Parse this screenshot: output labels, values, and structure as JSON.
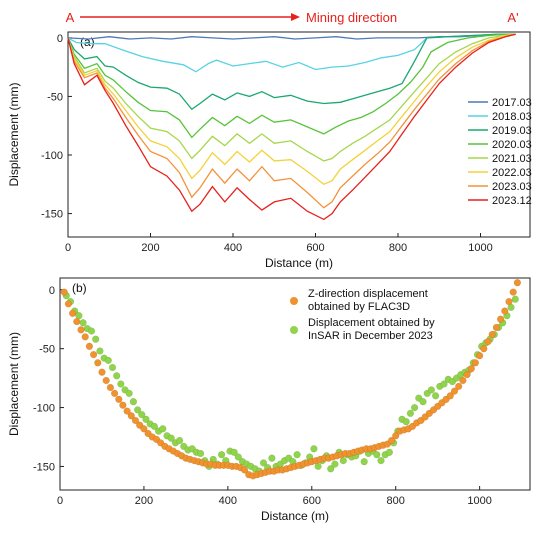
{
  "chart_data": [
    {
      "type": "line",
      "panel_label": "(a)",
      "xlabel": "Distance (m)",
      "ylabel": "Displacement (mm)",
      "xlim": [
        0,
        1120
      ],
      "ylim": [
        -170,
        5
      ],
      "xticks": [
        0,
        200,
        400,
        600,
        800,
        1000
      ],
      "yticks": [
        0,
        -50,
        -100,
        -150
      ],
      "grid": false,
      "legend_position": "right",
      "annotations": {
        "start_label": "A",
        "end_label": "A'",
        "arrow_label": "Mining direction",
        "arrow_color": "#e8201c"
      },
      "series": [
        {
          "name": "2017.03",
          "color": "#4f79b8",
          "x": [
            0,
            50,
            100,
            150,
            200,
            250,
            300,
            350,
            400,
            450,
            500,
            550,
            600,
            650,
            700,
            750,
            800,
            850,
            900,
            950,
            1000,
            1050,
            1085
          ],
          "y": [
            0,
            -1,
            1,
            -1,
            0,
            -1,
            1,
            0,
            -1,
            0,
            1,
            -1,
            0,
            1,
            -1,
            0,
            0,
            0,
            1,
            1,
            2,
            3,
            3
          ]
        },
        {
          "name": "2018.03",
          "color": "#57d3e3",
          "x": [
            0,
            20,
            60,
            90,
            130,
            180,
            230,
            280,
            310,
            340,
            360,
            400,
            440,
            480,
            520,
            560,
            600,
            640,
            680,
            720,
            760,
            800,
            840,
            870,
            920,
            980,
            1040,
            1085
          ],
          "y": [
            0,
            -4,
            -5,
            -5,
            -10,
            -16,
            -20,
            -23,
            -29,
            -22,
            -19,
            -24,
            -22,
            -20,
            -25,
            -21,
            -27,
            -25,
            -24,
            -21,
            -17,
            -15,
            -10,
            0,
            1,
            2,
            3,
            3
          ]
        },
        {
          "name": "2019.03",
          "color": "#1aa870",
          "x": [
            0,
            15,
            40,
            70,
            90,
            110,
            140,
            170,
            200,
            240,
            270,
            300,
            320,
            350,
            380,
            410,
            440,
            470,
            500,
            540,
            580,
            620,
            660,
            700,
            740,
            780,
            810,
            840,
            870,
            920,
            980,
            1040,
            1085
          ],
          "y": [
            0,
            -10,
            -18,
            -16,
            -24,
            -25,
            -32,
            -38,
            -42,
            -43,
            -48,
            -61,
            -56,
            -48,
            -53,
            -47,
            -50,
            -46,
            -51,
            -49,
            -54,
            -56,
            -55,
            -51,
            -47,
            -43,
            -39,
            -20,
            0,
            1,
            2,
            3,
            3
          ]
        },
        {
          "name": "2020.03",
          "color": "#58c33a",
          "x": [
            0,
            15,
            40,
            70,
            90,
            110,
            140,
            170,
            200,
            240,
            270,
            300,
            320,
            350,
            380,
            410,
            440,
            470,
            500,
            540,
            580,
            620,
            650,
            680,
            710,
            740,
            770,
            800,
            830,
            860,
            880,
            920,
            970,
            1020,
            1060,
            1085
          ],
          "y": [
            0,
            -14,
            -26,
            -22,
            -32,
            -36,
            -46,
            -55,
            -62,
            -63,
            -70,
            -85,
            -78,
            -68,
            -75,
            -67,
            -73,
            -66,
            -72,
            -70,
            -76,
            -82,
            -76,
            -71,
            -68,
            -63,
            -56,
            -48,
            -38,
            -25,
            -12,
            -4,
            0,
            2,
            3,
            3
          ]
        },
        {
          "name": "2021.03",
          "color": "#a7d64b",
          "x": [
            0,
            15,
            40,
            70,
            90,
            110,
            140,
            170,
            200,
            240,
            270,
            300,
            320,
            350,
            380,
            410,
            440,
            470,
            500,
            540,
            580,
            620,
            640,
            660,
            690,
            720,
            750,
            780,
            810,
            840,
            870,
            900,
            940,
            980,
            1020,
            1060,
            1085
          ],
          "y": [
            0,
            -16,
            -30,
            -26,
            -37,
            -43,
            -56,
            -67,
            -77,
            -80,
            -88,
            -103,
            -96,
            -84,
            -92,
            -82,
            -90,
            -82,
            -90,
            -88,
            -97,
            -105,
            -103,
            -97,
            -90,
            -84,
            -77,
            -70,
            -58,
            -46,
            -34,
            -22,
            -12,
            -5,
            0,
            2,
            3
          ]
        },
        {
          "name": "2022.03",
          "color": "#f3d23b",
          "x": [
            0,
            15,
            40,
            70,
            90,
            110,
            140,
            170,
            200,
            240,
            270,
            300,
            320,
            350,
            380,
            410,
            440,
            470,
            500,
            540,
            580,
            620,
            640,
            660,
            690,
            720,
            750,
            780,
            810,
            840,
            870,
            900,
            940,
            980,
            1020,
            1060,
            1085
          ],
          "y": [
            0,
            -18,
            -32,
            -28,
            -40,
            -48,
            -62,
            -76,
            -88,
            -93,
            -103,
            -120,
            -113,
            -98,
            -108,
            -97,
            -106,
            -96,
            -105,
            -104,
            -114,
            -125,
            -122,
            -112,
            -104,
            -96,
            -88,
            -80,
            -67,
            -54,
            -41,
            -29,
            -17,
            -8,
            -2,
            2,
            3
          ]
        },
        {
          "name": "2023.03",
          "color": "#f4923b",
          "x": [
            0,
            15,
            40,
            70,
            90,
            110,
            140,
            170,
            200,
            240,
            270,
            300,
            320,
            350,
            380,
            410,
            440,
            470,
            500,
            540,
            580,
            620,
            640,
            660,
            690,
            720,
            750,
            780,
            810,
            840,
            870,
            900,
            940,
            980,
            1020,
            1060,
            1085
          ],
          "y": [
            0,
            -20,
            -34,
            -30,
            -43,
            -52,
            -68,
            -83,
            -97,
            -103,
            -115,
            -136,
            -128,
            -112,
            -124,
            -112,
            -122,
            -110,
            -122,
            -120,
            -132,
            -145,
            -140,
            -128,
            -118,
            -108,
            -99,
            -89,
            -75,
            -61,
            -48,
            -35,
            -22,
            -11,
            -3,
            1,
            3
          ]
        },
        {
          "name": "2023.12",
          "color": "#e8201c",
          "x": [
            0,
            15,
            40,
            70,
            90,
            110,
            140,
            170,
            200,
            240,
            270,
            300,
            320,
            350,
            380,
            410,
            440,
            470,
            500,
            540,
            580,
            620,
            640,
            660,
            690,
            720,
            750,
            780,
            810,
            840,
            870,
            900,
            940,
            980,
            1020,
            1060,
            1085
          ],
          "y": [
            0,
            -22,
            -40,
            -32,
            -45,
            -56,
            -75,
            -92,
            -110,
            -118,
            -130,
            -148,
            -142,
            -127,
            -140,
            -128,
            -138,
            -147,
            -140,
            -137,
            -148,
            -155,
            -150,
            -140,
            -130,
            -119,
            -108,
            -97,
            -82,
            -67,
            -53,
            -39,
            -25,
            -13,
            -4,
            1,
            3
          ]
        }
      ]
    },
    {
      "type": "scatter",
      "panel_label": "(b)",
      "xlabel": "Distance (m)",
      "ylabel": "Displacement (mm)",
      "xlim": [
        0,
        1120
      ],
      "ylim": [
        -170,
        10
      ],
      "xticks": [
        0,
        200,
        400,
        600,
        800,
        1000
      ],
      "yticks": [
        0,
        -50,
        -100,
        -150
      ],
      "grid": false,
      "legend_position": "top-right",
      "series": [
        {
          "name": "Z-direction displacement obtained by FLAC3D",
          "color": "#f0922e",
          "x": [
            10,
            20,
            30,
            40,
            50,
            60,
            70,
            80,
            90,
            100,
            110,
            120,
            130,
            140,
            150,
            160,
            170,
            180,
            190,
            200,
            210,
            220,
            230,
            240,
            250,
            260,
            270,
            280,
            290,
            300,
            310,
            320,
            330,
            340,
            350,
            360,
            370,
            380,
            390,
            400,
            410,
            420,
            430,
            440,
            450,
            460,
            470,
            480,
            490,
            500,
            510,
            520,
            530,
            540,
            550,
            560,
            570,
            580,
            590,
            600,
            610,
            620,
            630,
            640,
            650,
            660,
            670,
            680,
            690,
            700,
            710,
            720,
            730,
            740,
            750,
            760,
            770,
            780,
            790,
            800,
            810,
            820,
            830,
            840,
            850,
            860,
            870,
            880,
            890,
            900,
            910,
            920,
            930,
            940,
            950,
            960,
            970,
            980,
            990,
            1000,
            1010,
            1020,
            1030,
            1040,
            1050,
            1060,
            1070,
            1080,
            1090
          ],
          "y": [
            -2,
            -12,
            -20,
            -27,
            -34,
            -40,
            -48,
            -55,
            -62,
            -70,
            -77,
            -83,
            -88,
            -93,
            -98,
            -103,
            -107,
            -111,
            -115,
            -118,
            -122,
            -125,
            -127,
            -130,
            -133,
            -135,
            -137,
            -139,
            -141,
            -143,
            -144,
            -145,
            -146,
            -147,
            -148,
            -148,
            -149,
            -149,
            -149,
            -149,
            -150,
            -150,
            -151,
            -153,
            -157,
            -158,
            -157,
            -156,
            -155,
            -154,
            -154,
            -153,
            -153,
            -152,
            -151,
            -150,
            -149,
            -148,
            -147,
            -146,
            -145,
            -144,
            -143,
            -143,
            -142,
            -141,
            -140,
            -139,
            -139,
            -138,
            -137,
            -136,
            -135,
            -135,
            -134,
            -133,
            -132,
            -131,
            -128,
            -124,
            -120,
            -119,
            -118,
            -116,
            -113,
            -111,
            -108,
            -105,
            -102,
            -99,
            -96,
            -93,
            -90,
            -86,
            -82,
            -77,
            -72,
            -67,
            -62,
            -56,
            -50,
            -44,
            -38,
            -32,
            -25,
            -18,
            -10,
            -2,
            6
          ]
        },
        {
          "name": "Displacement obtained by InSAR in December 2023",
          "color": "#8fd44b",
          "x": [
            15,
            25,
            35,
            45,
            55,
            65,
            75,
            85,
            95,
            105,
            115,
            125,
            135,
            145,
            155,
            165,
            175,
            185,
            195,
            205,
            215,
            225,
            235,
            245,
            255,
            265,
            275,
            285,
            295,
            305,
            315,
            325,
            335,
            345,
            355,
            365,
            375,
            385,
            395,
            405,
            415,
            425,
            435,
            445,
            455,
            465,
            475,
            485,
            495,
            505,
            515,
            525,
            535,
            545,
            555,
            565,
            575,
            585,
            595,
            605,
            615,
            625,
            635,
            645,
            655,
            665,
            675,
            685,
            695,
            705,
            715,
            725,
            735,
            745,
            755,
            765,
            775,
            785,
            795,
            805,
            815,
            825,
            835,
            845,
            855,
            865,
            875,
            885,
            895,
            905,
            915,
            925,
            935,
            945,
            955,
            965,
            975,
            985,
            995,
            1005,
            1015,
            1025,
            1035,
            1045,
            1055,
            1065,
            1075,
            1085
          ],
          "y": [
            -5,
            -10,
            -18,
            -22,
            -28,
            -33,
            -35,
            -42,
            -52,
            -58,
            -60,
            -66,
            -73,
            -80,
            -85,
            -88,
            -95,
            -102,
            -106,
            -110,
            -114,
            -116,
            -120,
            -118,
            -124,
            -126,
            -130,
            -128,
            -133,
            -136,
            -135,
            -138,
            -139,
            -145,
            -150,
            -144,
            -148,
            -140,
            -145,
            -137,
            -138,
            -142,
            -146,
            -148,
            -150,
            -152,
            -154,
            -147,
            -151,
            -143,
            -150,
            -148,
            -145,
            -143,
            -146,
            -140,
            -149,
            -147,
            -142,
            -135,
            -150,
            -145,
            -141,
            -152,
            -148,
            -138,
            -145,
            -140,
            -142,
            -141,
            -137,
            -146,
            -139,
            -137,
            -140,
            -145,
            -140,
            -138,
            -130,
            -120,
            -110,
            -112,
            -105,
            -100,
            -92,
            -95,
            -88,
            -85,
            -90,
            -82,
            -80,
            -76,
            -78,
            -75,
            -72,
            -70,
            -68,
            -62,
            -55,
            -48,
            -45,
            -42,
            -38,
            -32,
            -28,
            -22,
            -15,
            -8
          ]
        }
      ]
    }
  ]
}
